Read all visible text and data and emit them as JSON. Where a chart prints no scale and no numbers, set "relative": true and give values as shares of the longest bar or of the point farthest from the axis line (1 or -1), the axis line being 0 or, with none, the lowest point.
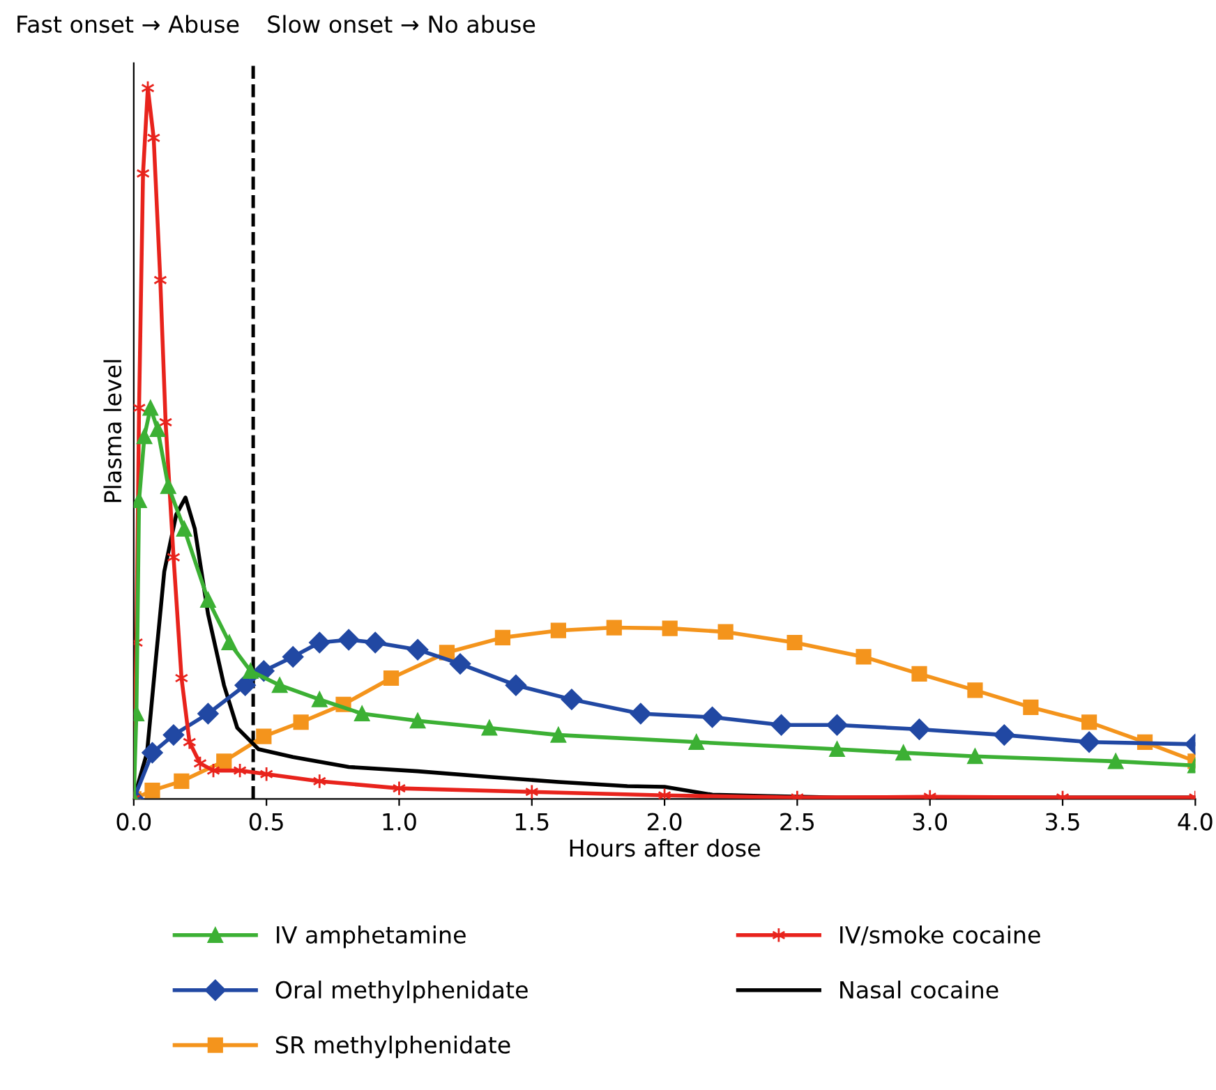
{
  "chart_data": {
    "type": "line",
    "relative": true,
    "xlabel": "Hours after dose",
    "ylabel": "Plasma level",
    "xlim": [
      0,
      4
    ],
    "xticks": [
      {
        "value": 0,
        "label": "0.0"
      },
      {
        "value": 0.5,
        "label": "0.5"
      },
      {
        "value": 1,
        "label": "1.0"
      },
      {
        "value": 1.5,
        "label": "1.5"
      },
      {
        "value": 2,
        "label": "2.0"
      },
      {
        "value": 2.5,
        "label": "2.5"
      },
      {
        "value": 3,
        "label": "3.0"
      },
      {
        "value": 3.5,
        "label": "3.5"
      },
      {
        "value": 4,
        "label": "4.0"
      }
    ],
    "grid": false,
    "legend": "bottom",
    "annotations": [
      "Fast onset → Abuse",
      "Slow onset → No abuse"
    ],
    "ref_lines": [
      {
        "axis": "x",
        "value": 0.45,
        "color": "#000000",
        "line_style": "dashed"
      }
    ],
    "series": [
      {
        "name": "IV amphetamine",
        "color": "#3cb034",
        "marker": "triangle",
        "x": [
          0,
          0.01,
          0.02,
          0.04,
          0.063,
          0.09,
          0.13,
          0.19,
          0.28,
          0.36,
          0.44,
          0.55,
          0.7,
          0.86,
          1.07,
          1.34,
          1.6,
          2.12,
          2.65,
          2.9,
          3.17,
          3.7,
          4.0
        ],
        "values": [
          0,
          0.12,
          0.42,
          0.51,
          0.55,
          0.52,
          0.44,
          0.38,
          0.28,
          0.22,
          0.18,
          0.16,
          0.14,
          0.12,
          0.11,
          0.1,
          0.09,
          0.08,
          0.07,
          0.065,
          0.06,
          0.053,
          0.047
        ]
      },
      {
        "name": "IV/smoke cocaine",
        "color": "#e8231c",
        "marker": "cross",
        "x": [
          0,
          0.01,
          0.02,
          0.035,
          0.053,
          0.075,
          0.1,
          0.12,
          0.15,
          0.18,
          0.21,
          0.25,
          0.3,
          0.4,
          0.5,
          0.7,
          1.0,
          1.5,
          2.0,
          2.5,
          3.0,
          3.5,
          4.0
        ],
        "values": [
          0,
          0.22,
          0.55,
          0.88,
          1.0,
          0.93,
          0.73,
          0.53,
          0.34,
          0.17,
          0.08,
          0.05,
          0.04,
          0.04,
          0.035,
          0.025,
          0.015,
          0.01,
          0.005,
          0.002,
          0.003,
          0.002,
          0.002
        ]
      },
      {
        "name": "Oral methylphenidate",
        "color": "#2148a3",
        "marker": "diamond",
        "x": [
          0,
          0.07,
          0.15,
          0.28,
          0.42,
          0.49,
          0.6,
          0.7,
          0.81,
          0.91,
          1.07,
          1.23,
          1.44,
          1.65,
          1.91,
          2.18,
          2.44,
          2.65,
          2.96,
          3.28,
          3.6,
          4.0
        ],
        "values": [
          0,
          0.065,
          0.09,
          0.12,
          0.16,
          0.18,
          0.2,
          0.22,
          0.224,
          0.22,
          0.21,
          0.19,
          0.16,
          0.14,
          0.12,
          0.115,
          0.104,
          0.104,
          0.098,
          0.09,
          0.08,
          0.077
        ]
      },
      {
        "name": "Nasal cocaine",
        "color": "#000000",
        "marker": "none",
        "x": [
          0,
          0.05,
          0.084,
          0.115,
          0.16,
          0.195,
          0.23,
          0.28,
          0.34,
          0.39,
          0.47,
          0.6,
          0.81,
          1.07,
          1.34,
          1.6,
          1.86,
          2.0,
          2.18,
          2.39,
          2.65,
          4.0
        ],
        "values": [
          0,
          0.065,
          0.2,
          0.32,
          0.4,
          0.424,
          0.38,
          0.26,
          0.16,
          0.1,
          0.07,
          0.059,
          0.045,
          0.039,
          0.031,
          0.024,
          0.018,
          0.017,
          0.006,
          0.004,
          0.002,
          0.002
        ]
      },
      {
        "name": "SR methylphenidate",
        "color": "#f4941c",
        "marker": "square",
        "x": [
          0,
          0.07,
          0.18,
          0.34,
          0.49,
          0.63,
          0.79,
          0.97,
          1.18,
          1.39,
          1.6,
          1.81,
          2.02,
          2.23,
          2.49,
          2.75,
          2.96,
          3.17,
          3.38,
          3.6,
          3.81,
          4.0
        ],
        "values": [
          0,
          0.012,
          0.025,
          0.053,
          0.088,
          0.108,
          0.133,
          0.17,
          0.206,
          0.227,
          0.237,
          0.241,
          0.24,
          0.235,
          0.22,
          0.2,
          0.176,
          0.153,
          0.129,
          0.108,
          0.08,
          0.053
        ]
      }
    ]
  }
}
